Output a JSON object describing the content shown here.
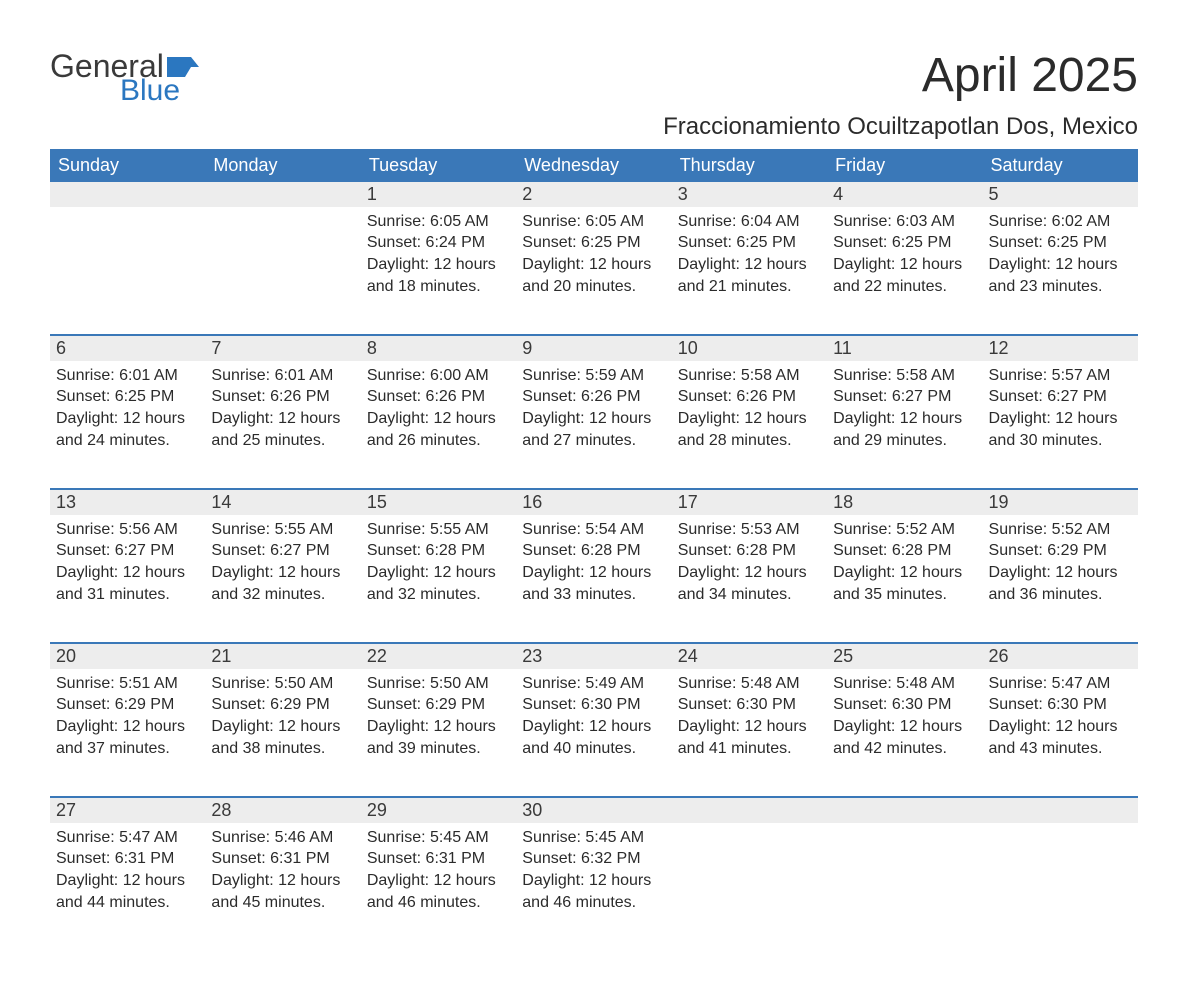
{
  "brand": {
    "name_part1": "General",
    "name_part2": "Blue",
    "color_general": "#3a3a3a",
    "color_blue": "#2b77c0",
    "flag_color": "#2b77c0"
  },
  "title": {
    "month_year": "April 2025",
    "location": "Fraccionamiento Ocuiltzapotlan Dos, Mexico",
    "title_fontsize": 48,
    "location_fontsize": 24,
    "text_color": "#2b2b2b"
  },
  "calendar": {
    "header_bg": "#3a78b8",
    "header_fg": "#ffffff",
    "daynum_bg": "#ededed",
    "row_border_color": "#3a78b8",
    "cell_text_color": "#2b2b2b",
    "columns": [
      "Sunday",
      "Monday",
      "Tuesday",
      "Wednesday",
      "Thursday",
      "Friday",
      "Saturday"
    ],
    "labels": {
      "sunrise": "Sunrise: ",
      "sunset": "Sunset: ",
      "daylight": "Daylight: "
    },
    "weeks": [
      [
        null,
        null,
        {
          "day": "1",
          "sunrise": "6:05 AM",
          "sunset": "6:24 PM",
          "daylight": "12 hours and 18 minutes."
        },
        {
          "day": "2",
          "sunrise": "6:05 AM",
          "sunset": "6:25 PM",
          "daylight": "12 hours and 20 minutes."
        },
        {
          "day": "3",
          "sunrise": "6:04 AM",
          "sunset": "6:25 PM",
          "daylight": "12 hours and 21 minutes."
        },
        {
          "day": "4",
          "sunrise": "6:03 AM",
          "sunset": "6:25 PM",
          "daylight": "12 hours and 22 minutes."
        },
        {
          "day": "5",
          "sunrise": "6:02 AM",
          "sunset": "6:25 PM",
          "daylight": "12 hours and 23 minutes."
        }
      ],
      [
        {
          "day": "6",
          "sunrise": "6:01 AM",
          "sunset": "6:25 PM",
          "daylight": "12 hours and 24 minutes."
        },
        {
          "day": "7",
          "sunrise": "6:01 AM",
          "sunset": "6:26 PM",
          "daylight": "12 hours and 25 minutes."
        },
        {
          "day": "8",
          "sunrise": "6:00 AM",
          "sunset": "6:26 PM",
          "daylight": "12 hours and 26 minutes."
        },
        {
          "day": "9",
          "sunrise": "5:59 AM",
          "sunset": "6:26 PM",
          "daylight": "12 hours and 27 minutes."
        },
        {
          "day": "10",
          "sunrise": "5:58 AM",
          "sunset": "6:26 PM",
          "daylight": "12 hours and 28 minutes."
        },
        {
          "day": "11",
          "sunrise": "5:58 AM",
          "sunset": "6:27 PM",
          "daylight": "12 hours and 29 minutes."
        },
        {
          "day": "12",
          "sunrise": "5:57 AM",
          "sunset": "6:27 PM",
          "daylight": "12 hours and 30 minutes."
        }
      ],
      [
        {
          "day": "13",
          "sunrise": "5:56 AM",
          "sunset": "6:27 PM",
          "daylight": "12 hours and 31 minutes."
        },
        {
          "day": "14",
          "sunrise": "5:55 AM",
          "sunset": "6:27 PM",
          "daylight": "12 hours and 32 minutes."
        },
        {
          "day": "15",
          "sunrise": "5:55 AM",
          "sunset": "6:28 PM",
          "daylight": "12 hours and 32 minutes."
        },
        {
          "day": "16",
          "sunrise": "5:54 AM",
          "sunset": "6:28 PM",
          "daylight": "12 hours and 33 minutes."
        },
        {
          "day": "17",
          "sunrise": "5:53 AM",
          "sunset": "6:28 PM",
          "daylight": "12 hours and 34 minutes."
        },
        {
          "day": "18",
          "sunrise": "5:52 AM",
          "sunset": "6:28 PM",
          "daylight": "12 hours and 35 minutes."
        },
        {
          "day": "19",
          "sunrise": "5:52 AM",
          "sunset": "6:29 PM",
          "daylight": "12 hours and 36 minutes."
        }
      ],
      [
        {
          "day": "20",
          "sunrise": "5:51 AM",
          "sunset": "6:29 PM",
          "daylight": "12 hours and 37 minutes."
        },
        {
          "day": "21",
          "sunrise": "5:50 AM",
          "sunset": "6:29 PM",
          "daylight": "12 hours and 38 minutes."
        },
        {
          "day": "22",
          "sunrise": "5:50 AM",
          "sunset": "6:29 PM",
          "daylight": "12 hours and 39 minutes."
        },
        {
          "day": "23",
          "sunrise": "5:49 AM",
          "sunset": "6:30 PM",
          "daylight": "12 hours and 40 minutes."
        },
        {
          "day": "24",
          "sunrise": "5:48 AM",
          "sunset": "6:30 PM",
          "daylight": "12 hours and 41 minutes."
        },
        {
          "day": "25",
          "sunrise": "5:48 AM",
          "sunset": "6:30 PM",
          "daylight": "12 hours and 42 minutes."
        },
        {
          "day": "26",
          "sunrise": "5:47 AM",
          "sunset": "6:30 PM",
          "daylight": "12 hours and 43 minutes."
        }
      ],
      [
        {
          "day": "27",
          "sunrise": "5:47 AM",
          "sunset": "6:31 PM",
          "daylight": "12 hours and 44 minutes."
        },
        {
          "day": "28",
          "sunrise": "5:46 AM",
          "sunset": "6:31 PM",
          "daylight": "12 hours and 45 minutes."
        },
        {
          "day": "29",
          "sunrise": "5:45 AM",
          "sunset": "6:31 PM",
          "daylight": "12 hours and 46 minutes."
        },
        {
          "day": "30",
          "sunrise": "5:45 AM",
          "sunset": "6:32 PM",
          "daylight": "12 hours and 46 minutes."
        },
        null,
        null,
        null
      ]
    ]
  }
}
